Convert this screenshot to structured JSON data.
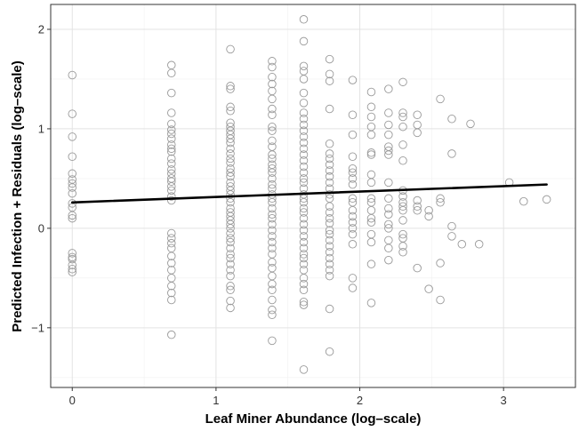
{
  "chart_data": {
    "type": "scatter",
    "title": "",
    "xlabel": "Leaf Miner Abundance (log–scale)",
    "ylabel": "Predicted Infection + Residuals (log–scale)",
    "xlim": [
      -0.15,
      3.5
    ],
    "ylim": [
      -1.6,
      2.25
    ],
    "x_ticks": [
      0,
      1,
      2,
      3
    ],
    "x_tick_labels": [
      "0",
      "1",
      "2",
      "3"
    ],
    "y_ticks": [
      -1,
      0,
      1,
      2
    ],
    "y_tick_labels": [
      "−1",
      "0",
      "1",
      "2"
    ],
    "grid": true,
    "fit_line": {
      "x": [
        0,
        3.3
      ],
      "y": [
        0.26,
        0.44
      ]
    },
    "points": [
      [
        0,
        1.54
      ],
      [
        0,
        1.15
      ],
      [
        0,
        0.92
      ],
      [
        0,
        0.72
      ],
      [
        0,
        0.55
      ],
      [
        0,
        0.49
      ],
      [
        0,
        0.45
      ],
      [
        0,
        0.41
      ],
      [
        0,
        0.35
      ],
      [
        0,
        0.25
      ],
      [
        0,
        0.21
      ],
      [
        0,
        0.13
      ],
      [
        0,
        0.1
      ],
      [
        0,
        -0.25
      ],
      [
        0,
        -0.29
      ],
      [
        0,
        -0.31
      ],
      [
        0,
        -0.37
      ],
      [
        0,
        -0.41
      ],
      [
        0,
        -0.44
      ],
      [
        0.69,
        1.64
      ],
      [
        0.69,
        1.56
      ],
      [
        0.69,
        1.36
      ],
      [
        0.69,
        1.16
      ],
      [
        0.69,
        1.05
      ],
      [
        0.69,
        0.99
      ],
      [
        0.69,
        0.95
      ],
      [
        0.69,
        0.9
      ],
      [
        0.69,
        0.84
      ],
      [
        0.69,
        0.8
      ],
      [
        0.69,
        0.77
      ],
      [
        0.69,
        0.7
      ],
      [
        0.69,
        0.65
      ],
      [
        0.69,
        0.59
      ],
      [
        0.69,
        0.55
      ],
      [
        0.69,
        0.5
      ],
      [
        0.69,
        0.47
      ],
      [
        0.69,
        0.42
      ],
      [
        0.69,
        0.38
      ],
      [
        0.69,
        0.32
      ],
      [
        0.69,
        0.28
      ],
      [
        0.69,
        -0.05
      ],
      [
        0.69,
        -0.1
      ],
      [
        0.69,
        -0.15
      ],
      [
        0.69,
        -0.2
      ],
      [
        0.69,
        -0.28
      ],
      [
        0.69,
        -0.35
      ],
      [
        0.69,
        -0.42
      ],
      [
        0.69,
        -0.5
      ],
      [
        0.69,
        -0.58
      ],
      [
        0.69,
        -0.65
      ],
      [
        0.69,
        -0.72
      ],
      [
        0.69,
        -1.07
      ],
      [
        1.1,
        1.8
      ],
      [
        1.1,
        1.43
      ],
      [
        1.1,
        1.4
      ],
      [
        1.1,
        1.22
      ],
      [
        1.1,
        1.18
      ],
      [
        1.1,
        1.06
      ],
      [
        1.1,
        1.02
      ],
      [
        1.1,
        0.98
      ],
      [
        1.1,
        0.94
      ],
      [
        1.1,
        0.9
      ],
      [
        1.1,
        0.86
      ],
      [
        1.1,
        0.8
      ],
      [
        1.1,
        0.75
      ],
      [
        1.1,
        0.7
      ],
      [
        1.1,
        0.66
      ],
      [
        1.1,
        0.6
      ],
      [
        1.1,
        0.56
      ],
      [
        1.1,
        0.52
      ],
      [
        1.1,
        0.46
      ],
      [
        1.1,
        0.42
      ],
      [
        1.1,
        0.38
      ],
      [
        1.1,
        0.34
      ],
      [
        1.1,
        0.3
      ],
      [
        1.1,
        0.26
      ],
      [
        1.1,
        0.2
      ],
      [
        1.1,
        0.16
      ],
      [
        1.1,
        0.12
      ],
      [
        1.1,
        0.08
      ],
      [
        1.1,
        0.04
      ],
      [
        1.1,
        0
      ],
      [
        1.1,
        -0.05
      ],
      [
        1.1,
        -0.1
      ],
      [
        1.1,
        -0.14
      ],
      [
        1.1,
        -0.2
      ],
      [
        1.1,
        -0.26
      ],
      [
        1.1,
        -0.3
      ],
      [
        1.1,
        -0.36
      ],
      [
        1.1,
        -0.42
      ],
      [
        1.1,
        -0.48
      ],
      [
        1.1,
        -0.58
      ],
      [
        1.1,
        -0.62
      ],
      [
        1.1,
        -0.73
      ],
      [
        1.1,
        -0.8
      ],
      [
        1.39,
        1.68
      ],
      [
        1.39,
        1.62
      ],
      [
        1.39,
        1.52
      ],
      [
        1.39,
        1.45
      ],
      [
        1.39,
        1.38
      ],
      [
        1.39,
        1.3
      ],
      [
        1.39,
        1.2
      ],
      [
        1.39,
        1.14
      ],
      [
        1.39,
        1.02
      ],
      [
        1.39,
        0.98
      ],
      [
        1.39,
        0.88
      ],
      [
        1.39,
        0.82
      ],
      [
        1.39,
        0.74
      ],
      [
        1.39,
        0.7
      ],
      [
        1.39,
        0.64
      ],
      [
        1.39,
        0.6
      ],
      [
        1.39,
        0.56
      ],
      [
        1.39,
        0.5
      ],
      [
        1.39,
        0.44
      ],
      [
        1.39,
        0.4
      ],
      [
        1.39,
        0.34
      ],
      [
        1.39,
        0.3
      ],
      [
        1.39,
        0.26
      ],
      [
        1.39,
        0.2
      ],
      [
        1.39,
        0.14
      ],
      [
        1.39,
        0.1
      ],
      [
        1.39,
        0.04
      ],
      [
        1.39,
        -0.02
      ],
      [
        1.39,
        -0.08
      ],
      [
        1.39,
        -0.14
      ],
      [
        1.39,
        -0.2
      ],
      [
        1.39,
        -0.26
      ],
      [
        1.39,
        -0.34
      ],
      [
        1.39,
        -0.4
      ],
      [
        1.39,
        -0.48
      ],
      [
        1.39,
        -0.56
      ],
      [
        1.39,
        -0.62
      ],
      [
        1.39,
        -0.72
      ],
      [
        1.39,
        -0.82
      ],
      [
        1.39,
        -0.87
      ],
      [
        1.39,
        -1.13
      ],
      [
        1.61,
        2.1
      ],
      [
        1.61,
        1.88
      ],
      [
        1.61,
        1.63
      ],
      [
        1.61,
        1.58
      ],
      [
        1.61,
        1.5
      ],
      [
        1.61,
        1.36
      ],
      [
        1.61,
        1.26
      ],
      [
        1.61,
        1.16
      ],
      [
        1.61,
        1.1
      ],
      [
        1.61,
        1.04
      ],
      [
        1.61,
        0.98
      ],
      [
        1.61,
        0.92
      ],
      [
        1.61,
        0.86
      ],
      [
        1.61,
        0.8
      ],
      [
        1.61,
        0.74
      ],
      [
        1.61,
        0.68
      ],
      [
        1.61,
        0.62
      ],
      [
        1.61,
        0.56
      ],
      [
        1.61,
        0.5
      ],
      [
        1.61,
        0.46
      ],
      [
        1.61,
        0.4
      ],
      [
        1.61,
        0.34
      ],
      [
        1.61,
        0.3
      ],
      [
        1.61,
        0.26
      ],
      [
        1.61,
        0.2
      ],
      [
        1.61,
        0.16
      ],
      [
        1.61,
        0.1
      ],
      [
        1.61,
        0.04
      ],
      [
        1.61,
        -0.02
      ],
      [
        1.61,
        -0.08
      ],
      [
        1.61,
        -0.14
      ],
      [
        1.61,
        -0.2
      ],
      [
        1.61,
        -0.26
      ],
      [
        1.61,
        -0.3
      ],
      [
        1.61,
        -0.36
      ],
      [
        1.61,
        -0.42
      ],
      [
        1.61,
        -0.5
      ],
      [
        1.61,
        -0.56
      ],
      [
        1.61,
        -0.62
      ],
      [
        1.61,
        -0.74
      ],
      [
        1.61,
        -0.77
      ],
      [
        1.61,
        -1.42
      ],
      [
        1.79,
        1.7
      ],
      [
        1.79,
        1.55
      ],
      [
        1.79,
        1.48
      ],
      [
        1.79,
        1.2
      ],
      [
        1.79,
        0.85
      ],
      [
        1.79,
        0.75
      ],
      [
        1.79,
        0.7
      ],
      [
        1.79,
        0.64
      ],
      [
        1.79,
        0.58
      ],
      [
        1.79,
        0.52
      ],
      [
        1.79,
        0.46
      ],
      [
        1.79,
        0.4
      ],
      [
        1.79,
        0.34
      ],
      [
        1.79,
        0.3
      ],
      [
        1.79,
        0.22
      ],
      [
        1.79,
        0.16
      ],
      [
        1.79,
        0.1
      ],
      [
        1.79,
        0.05
      ],
      [
        1.79,
        -0.02
      ],
      [
        1.79,
        -0.06
      ],
      [
        1.79,
        -0.12
      ],
      [
        1.79,
        -0.18
      ],
      [
        1.79,
        -0.24
      ],
      [
        1.79,
        -0.3
      ],
      [
        1.79,
        -0.36
      ],
      [
        1.79,
        -0.42
      ],
      [
        1.79,
        -0.48
      ],
      [
        1.79,
        -0.81
      ],
      [
        1.79,
        -1.24
      ],
      [
        1.95,
        1.49
      ],
      [
        1.95,
        1.14
      ],
      [
        1.95,
        0.94
      ],
      [
        1.95,
        0.72
      ],
      [
        1.95,
        0.6
      ],
      [
        1.95,
        0.56
      ],
      [
        1.95,
        0.5
      ],
      [
        1.95,
        0.44
      ],
      [
        1.95,
        0.3
      ],
      [
        1.95,
        0.26
      ],
      [
        1.95,
        0.18
      ],
      [
        1.95,
        0.12
      ],
      [
        1.95,
        0.06
      ],
      [
        1.95,
        0
      ],
      [
        1.95,
        -0.06
      ],
      [
        1.95,
        -0.16
      ],
      [
        1.95,
        -0.5
      ],
      [
        1.95,
        -0.6
      ],
      [
        2.08,
        1.37
      ],
      [
        2.08,
        1.22
      ],
      [
        2.08,
        1.12
      ],
      [
        2.08,
        1.02
      ],
      [
        2.08,
        0.94
      ],
      [
        2.08,
        0.76
      ],
      [
        2.08,
        0.74
      ],
      [
        2.08,
        0.54
      ],
      [
        2.08,
        0.46
      ],
      [
        2.08,
        0.3
      ],
      [
        2.08,
        0.26
      ],
      [
        2.08,
        0.18
      ],
      [
        2.08,
        0.1
      ],
      [
        2.08,
        0.06
      ],
      [
        2.08,
        -0.06
      ],
      [
        2.08,
        -0.14
      ],
      [
        2.08,
        -0.36
      ],
      [
        2.08,
        -0.75
      ],
      [
        2.2,
        1.4
      ],
      [
        2.2,
        1.16
      ],
      [
        2.2,
        1.04
      ],
      [
        2.2,
        0.94
      ],
      [
        2.2,
        0.82
      ],
      [
        2.2,
        0.78
      ],
      [
        2.2,
        0.74
      ],
      [
        2.2,
        0.46
      ],
      [
        2.2,
        0.3
      ],
      [
        2.2,
        0.2
      ],
      [
        2.2,
        0.14
      ],
      [
        2.2,
        0.04
      ],
      [
        2.2,
        0
      ],
      [
        2.2,
        -0.12
      ],
      [
        2.2,
        -0.2
      ],
      [
        2.2,
        -0.32
      ],
      [
        2.3,
        1.47
      ],
      [
        2.3,
        1.16
      ],
      [
        2.3,
        1.12
      ],
      [
        2.3,
        1.02
      ],
      [
        2.3,
        0.84
      ],
      [
        2.3,
        0.68
      ],
      [
        2.3,
        0.38
      ],
      [
        2.3,
        0.32
      ],
      [
        2.3,
        0.26
      ],
      [
        2.3,
        0.22
      ],
      [
        2.3,
        0.18
      ],
      [
        2.3,
        0.08
      ],
      [
        2.3,
        -0.06
      ],
      [
        2.3,
        -0.1
      ],
      [
        2.3,
        -0.18
      ],
      [
        2.3,
        -0.24
      ],
      [
        2.4,
        1.14
      ],
      [
        2.4,
        1.04
      ],
      [
        2.4,
        0.96
      ],
      [
        2.4,
        0.28
      ],
      [
        2.4,
        0.22
      ],
      [
        2.4,
        0.18
      ],
      [
        2.4,
        -0.4
      ],
      [
        2.48,
        0.18
      ],
      [
        2.48,
        0.12
      ],
      [
        2.48,
        -0.61
      ],
      [
        2.56,
        1.3
      ],
      [
        2.56,
        0.3
      ],
      [
        2.56,
        0.26
      ],
      [
        2.56,
        -0.35
      ],
      [
        2.56,
        -0.72
      ],
      [
        2.64,
        1.1
      ],
      [
        2.64,
        0.75
      ],
      [
        2.64,
        0.02
      ],
      [
        2.64,
        -0.08
      ],
      [
        2.71,
        -0.16
      ],
      [
        2.77,
        1.05
      ],
      [
        2.83,
        -0.16
      ],
      [
        3.04,
        0.46
      ],
      [
        3.14,
        0.27
      ],
      [
        3.3,
        0.29
      ]
    ]
  }
}
